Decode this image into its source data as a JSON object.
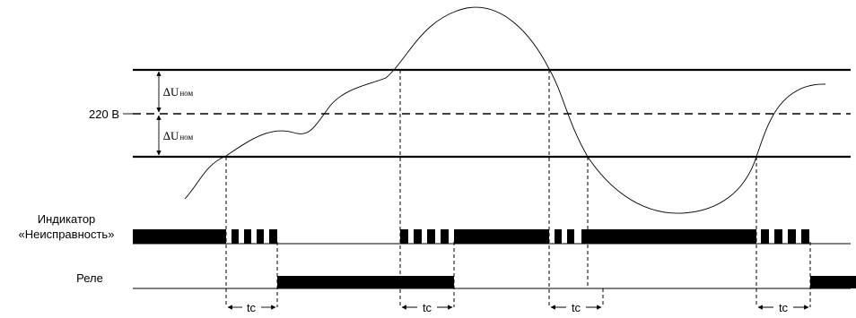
{
  "labels": {
    "voltage_nominal": "220 В",
    "delta_symbol": "∆U",
    "delta_subscript": "ном",
    "indicator_line1": "Индикатор",
    "indicator_line2": "«Неисправность»",
    "relay": "Реле",
    "tc": "tc"
  },
  "colors": {
    "ink": "#000000",
    "background": "#ffffff"
  }
}
